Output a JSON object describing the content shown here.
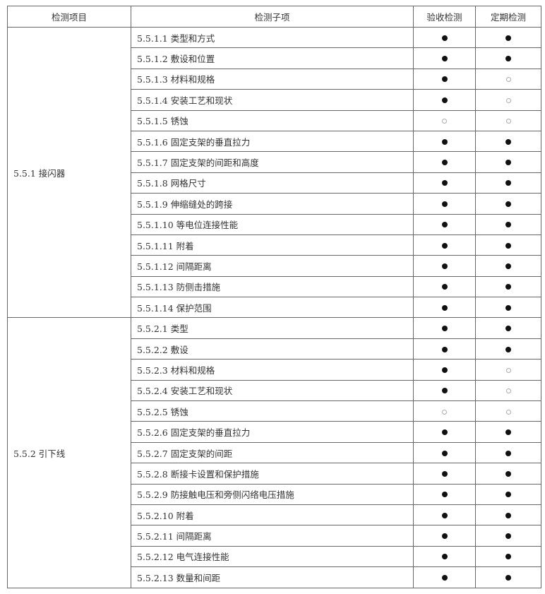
{
  "header": {
    "item": "检测项目",
    "subitem": "检测子项",
    "acceptance": "验收检测",
    "periodic": "定期检测"
  },
  "legend": {
    "full": "● required",
    "open": "○ optional"
  },
  "groups": [
    {
      "name": "5.5.1 接闪器",
      "rows": [
        {
          "sub": "5.5.1.1 类型和方式",
          "acceptance": "full",
          "periodic": "full"
        },
        {
          "sub": "5.5.1.2 敷设和位置",
          "acceptance": "full",
          "periodic": "full"
        },
        {
          "sub": "5.5.1.3 材料和规格",
          "acceptance": "full",
          "periodic": "open"
        },
        {
          "sub": "5.5.1.4 安装工艺和现状",
          "acceptance": "full",
          "periodic": "open"
        },
        {
          "sub": "5.5.1.5 锈蚀",
          "acceptance": "open",
          "periodic": "open"
        },
        {
          "sub": "5.5.1.6 固定支架的垂直拉力",
          "acceptance": "full",
          "periodic": "full"
        },
        {
          "sub": "5.5.1.7 固定支架的间距和高度",
          "acceptance": "full",
          "periodic": "full"
        },
        {
          "sub": "5.5.1.8 网格尺寸",
          "acceptance": "full",
          "periodic": "full"
        },
        {
          "sub": "5.5.1.9 伸缩缝处的跨接",
          "acceptance": "full",
          "periodic": "full"
        },
        {
          "sub": "5.5.1.10 等电位连接性能",
          "acceptance": "full",
          "periodic": "full"
        },
        {
          "sub": "5.5.1.11 附着",
          "acceptance": "full",
          "periodic": "full"
        },
        {
          "sub": "5.5.1.12 间隔距离",
          "acceptance": "full",
          "periodic": "full"
        },
        {
          "sub": "5.5.1.13 防侧击措施",
          "acceptance": "full",
          "periodic": "full"
        },
        {
          "sub": "5.5.1.14 保护范围",
          "acceptance": "full",
          "periodic": "full"
        }
      ]
    },
    {
      "name": "5.5.2 引下线",
      "rows": [
        {
          "sub": "5.5.2.1 类型",
          "acceptance": "full",
          "periodic": "full"
        },
        {
          "sub": "5.5.2.2 敷设",
          "acceptance": "full",
          "periodic": "full"
        },
        {
          "sub": "5.5.2.3 材料和规格",
          "acceptance": "full",
          "periodic": "open"
        },
        {
          "sub": "5.5.2.4 安装工艺和现状",
          "acceptance": "full",
          "periodic": "open"
        },
        {
          "sub": "5.5.2.5 锈蚀",
          "acceptance": "open",
          "periodic": "open"
        },
        {
          "sub": "5.5.2.6 固定支架的垂直拉力",
          "acceptance": "full",
          "periodic": "full"
        },
        {
          "sub": "5.5.2.7 固定支架的间距",
          "acceptance": "full",
          "periodic": "full"
        },
        {
          "sub": "5.5.2.8 断接卡设置和保护措施",
          "acceptance": "full",
          "periodic": "full"
        },
        {
          "sub": "5.5.2.9 防接触电压和旁侧闪络电压措施",
          "acceptance": "full",
          "periodic": "full"
        },
        {
          "sub": "5.5.2.10 附着",
          "acceptance": "full",
          "periodic": "full"
        },
        {
          "sub": "5.5.2.11 间隔距离",
          "acceptance": "full",
          "periodic": "full"
        },
        {
          "sub": "5.5.2.12 电气连接性能",
          "acceptance": "full",
          "periodic": "full"
        },
        {
          "sub": "5.5.2.13 数量和间距",
          "acceptance": "full",
          "periodic": "full"
        }
      ]
    }
  ]
}
